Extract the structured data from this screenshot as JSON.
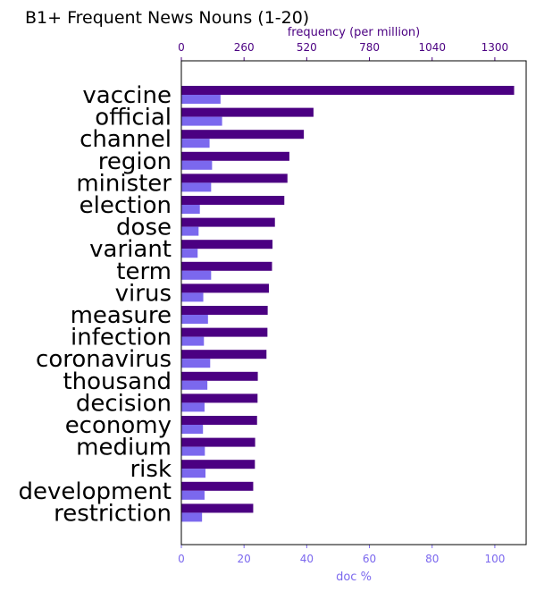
{
  "chart_data": {
    "type": "bar",
    "orientation": "horizontal",
    "title": "B1+ Frequent News Nouns (1-20)",
    "categories": [
      "vaccine",
      "official",
      "channel",
      "region",
      "minister",
      "election",
      "dose",
      "variant",
      "term",
      "virus",
      "measure",
      "infection",
      "coronavirus",
      "thousand",
      "decision",
      "economy",
      "medium",
      "risk",
      "development",
      "restriction"
    ],
    "series": [
      {
        "axis": "top",
        "color": "#4b0082",
        "values": [
          1380,
          548,
          508,
          448,
          440,
          427,
          388,
          378,
          376,
          363,
          358,
          357,
          353,
          317,
          316,
          314,
          306,
          305,
          298,
          298
        ]
      },
      {
        "axis": "bottom",
        "color": "#7b68ee",
        "values": [
          12.5,
          13.0,
          9.0,
          9.8,
          9.5,
          5.9,
          5.5,
          5.2,
          9.5,
          7.0,
          8.5,
          7.2,
          9.2,
          8.3,
          7.4,
          6.9,
          7.5,
          7.7,
          7.4,
          6.6
        ]
      }
    ],
    "x_top": {
      "label": "frequency (per million)",
      "lim": [
        0,
        1430
      ],
      "ticks": [
        0,
        260,
        520,
        780,
        1040,
        1300
      ],
      "color": "#4b0082"
    },
    "x_bottom": {
      "label": "doc %",
      "lim": [
        0,
        110
      ],
      "ticks": [
        0,
        20,
        40,
        60,
        80,
        100
      ],
      "color": "#7b68ee"
    },
    "grid": false,
    "legend": "none"
  }
}
